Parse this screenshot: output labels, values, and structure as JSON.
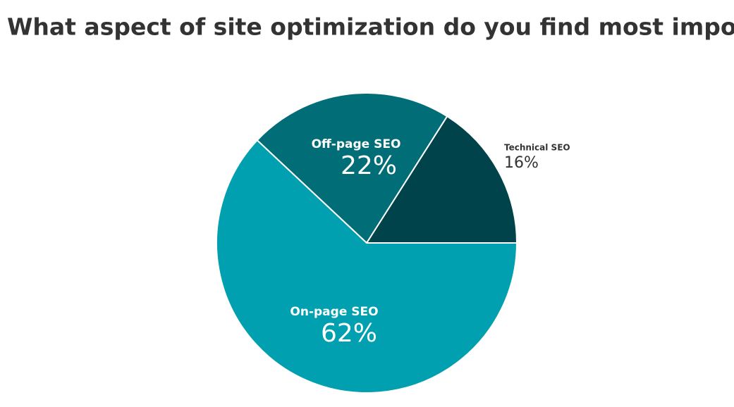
{
  "chart_data": {
    "type": "pie",
    "title": "What aspect of site optimization do you find most important?",
    "categories": [
      "Technical SEO",
      "Off-page SEO",
      "On-page SEO"
    ],
    "values": [
      16,
      22,
      62
    ],
    "value_labels": [
      "16%",
      "22%",
      "62%"
    ],
    "colors": [
      "#00434b",
      "#006d77",
      "#00a0b0"
    ]
  }
}
